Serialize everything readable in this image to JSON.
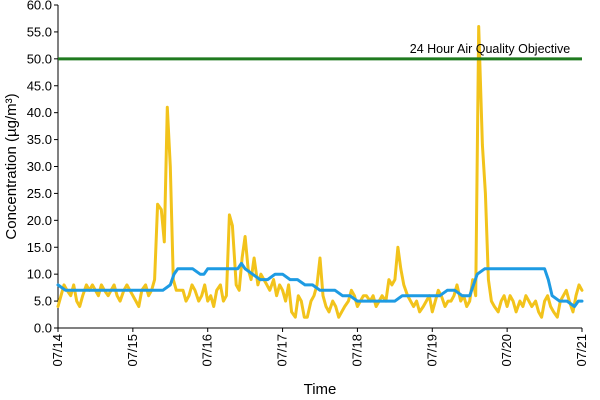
{
  "chart_data": {
    "type": "line",
    "title": "",
    "xlabel": "Time",
    "ylabel": "Concentration (µg/m³)",
    "ylim": [
      0,
      60
    ],
    "xlim": [
      0,
      7
    ],
    "ytick_labels": [
      "0.0",
      "5.0",
      "10.0",
      "15.0",
      "20.0",
      "25.0",
      "30.0",
      "35.0",
      "40.0",
      "45.0",
      "50.0",
      "55.0",
      "60.0"
    ],
    "xtick_labels": [
      "07/14",
      "07/15",
      "07/16",
      "07/17",
      "07/18",
      "07/19",
      "07/20",
      "07/21"
    ],
    "x_unit_note": "x values are fractional days after 07/14 00:00",
    "grid": false,
    "reference_line": {
      "name": "24 Hour Air Quality Objective",
      "value": 50,
      "color": "#1f7a1f"
    },
    "series": [
      {
        "name": "",
        "color": "#f2c31b",
        "x": [
          0.0,
          0.04,
          0.08,
          0.12,
          0.17,
          0.21,
          0.25,
          0.29,
          0.33,
          0.38,
          0.42,
          0.46,
          0.5,
          0.54,
          0.58,
          0.62,
          0.67,
          0.71,
          0.75,
          0.79,
          0.83,
          0.88,
          0.92,
          0.96,
          1.0,
          1.04,
          1.08,
          1.12,
          1.17,
          1.21,
          1.25,
          1.29,
          1.33,
          1.38,
          1.42,
          1.46,
          1.5,
          1.54,
          1.58,
          1.62,
          1.67,
          1.71,
          1.75,
          1.79,
          1.83,
          1.88,
          1.92,
          1.96,
          2.0,
          2.04,
          2.08,
          2.12,
          2.17,
          2.21,
          2.25,
          2.29,
          2.33,
          2.38,
          2.42,
          2.46,
          2.5,
          2.54,
          2.58,
          2.62,
          2.67,
          2.71,
          2.75,
          2.79,
          2.83,
          2.88,
          2.92,
          2.96,
          3.0,
          3.04,
          3.08,
          3.12,
          3.17,
          3.21,
          3.25,
          3.29,
          3.33,
          3.38,
          3.42,
          3.46,
          3.5,
          3.54,
          3.58,
          3.62,
          3.67,
          3.71,
          3.75,
          3.79,
          3.83,
          3.88,
          3.92,
          3.96,
          4.0,
          4.04,
          4.08,
          4.12,
          4.17,
          4.21,
          4.25,
          4.29,
          4.33,
          4.38,
          4.42,
          4.46,
          4.5,
          4.54,
          4.58,
          4.62,
          4.67,
          4.71,
          4.75,
          4.79,
          4.83,
          4.88,
          4.92,
          4.96,
          5.0,
          5.04,
          5.08,
          5.12,
          5.17,
          5.21,
          5.25,
          5.29,
          5.33,
          5.38,
          5.42,
          5.46,
          5.5,
          5.54,
          5.58,
          5.62,
          5.67,
          5.71,
          5.75,
          5.79,
          5.83,
          5.88,
          5.92,
          5.96,
          6.0,
          6.04,
          6.08,
          6.12,
          6.17,
          6.21,
          6.25,
          6.29,
          6.33,
          6.38,
          6.42,
          6.46,
          6.5,
          6.54,
          6.58,
          6.62,
          6.67,
          6.71,
          6.75,
          6.79,
          6.83,
          6.88,
          6.92,
          6.96,
          7.0
        ],
        "values": [
          4,
          6,
          8,
          7,
          6,
          8,
          5,
          4,
          6,
          8,
          7,
          8,
          7,
          6,
          8,
          7,
          6,
          7,
          8,
          6,
          5,
          7,
          8,
          7,
          6,
          5,
          4,
          7,
          8,
          6,
          7,
          9,
          23,
          22,
          16,
          41,
          30,
          9,
          7,
          7,
          7,
          5,
          6,
          8,
          7,
          5,
          6,
          8,
          5,
          6,
          4,
          7,
          8,
          5,
          6,
          21,
          19,
          8,
          7,
          13,
          17,
          11,
          9,
          13,
          8,
          10,
          9,
          8,
          7,
          9,
          6,
          8,
          7,
          5,
          8,
          3,
          2,
          6,
          5,
          2,
          2,
          5,
          6,
          8,
          13,
          6,
          4,
          3,
          5,
          4,
          2,
          3,
          4,
          5,
          7,
          6,
          4,
          5,
          6,
          6,
          5,
          6,
          4,
          5,
          6,
          5,
          9,
          8,
          9,
          15,
          11,
          8,
          6,
          5,
          4,
          5,
          3,
          4,
          5,
          6,
          3,
          5,
          7,
          6,
          4,
          5,
          5,
          6,
          8,
          5,
          6,
          4,
          5,
          9,
          6,
          56,
          34,
          25,
          9,
          5,
          4,
          3,
          5,
          6,
          4,
          6,
          5,
          3,
          5,
          4,
          6,
          5,
          4,
          5,
          3,
          2,
          5,
          6,
          4,
          3,
          2,
          5,
          6,
          7,
          5,
          3,
          6,
          8,
          7
        ]
      },
      {
        "name": "",
        "color": "#1e9be3",
        "x": [
          0.0,
          0.1,
          0.2,
          0.3,
          0.4,
          0.5,
          0.6,
          0.7,
          0.8,
          0.9,
          1.0,
          1.1,
          1.2,
          1.3,
          1.4,
          1.5,
          1.55,
          1.6,
          1.65,
          1.7,
          1.8,
          1.9,
          1.95,
          2.0,
          2.1,
          2.2,
          2.3,
          2.4,
          2.45,
          2.5,
          2.6,
          2.7,
          2.8,
          2.9,
          3.0,
          3.1,
          3.2,
          3.3,
          3.4,
          3.5,
          3.6,
          3.7,
          3.8,
          3.9,
          4.0,
          4.1,
          4.2,
          4.3,
          4.4,
          4.5,
          4.6,
          4.7,
          4.8,
          4.9,
          5.0,
          5.1,
          5.2,
          5.3,
          5.4,
          5.5,
          5.55,
          5.6,
          5.7,
          5.8,
          5.9,
          6.0,
          6.1,
          6.2,
          6.3,
          6.4,
          6.5,
          6.55,
          6.6,
          6.7,
          6.8,
          6.9,
          6.95,
          7.0
        ],
        "values": [
          8,
          7,
          7,
          7,
          7,
          7,
          7,
          7,
          7,
          7,
          7,
          7,
          7,
          7,
          7,
          8,
          10,
          11,
          11,
          11,
          11,
          10,
          10,
          11,
          11,
          11,
          11,
          11,
          12,
          11,
          10,
          9,
          9,
          10,
          10,
          9,
          9,
          8,
          8,
          7,
          7,
          7,
          6,
          6,
          5,
          5,
          5,
          5,
          5,
          5,
          6,
          6,
          6,
          6,
          6,
          6,
          7,
          7,
          6,
          6,
          8,
          10,
          11,
          11,
          11,
          11,
          11,
          11,
          11,
          11,
          11,
          9,
          6,
          5,
          5,
          4,
          5,
          5
        ]
      }
    ]
  }
}
